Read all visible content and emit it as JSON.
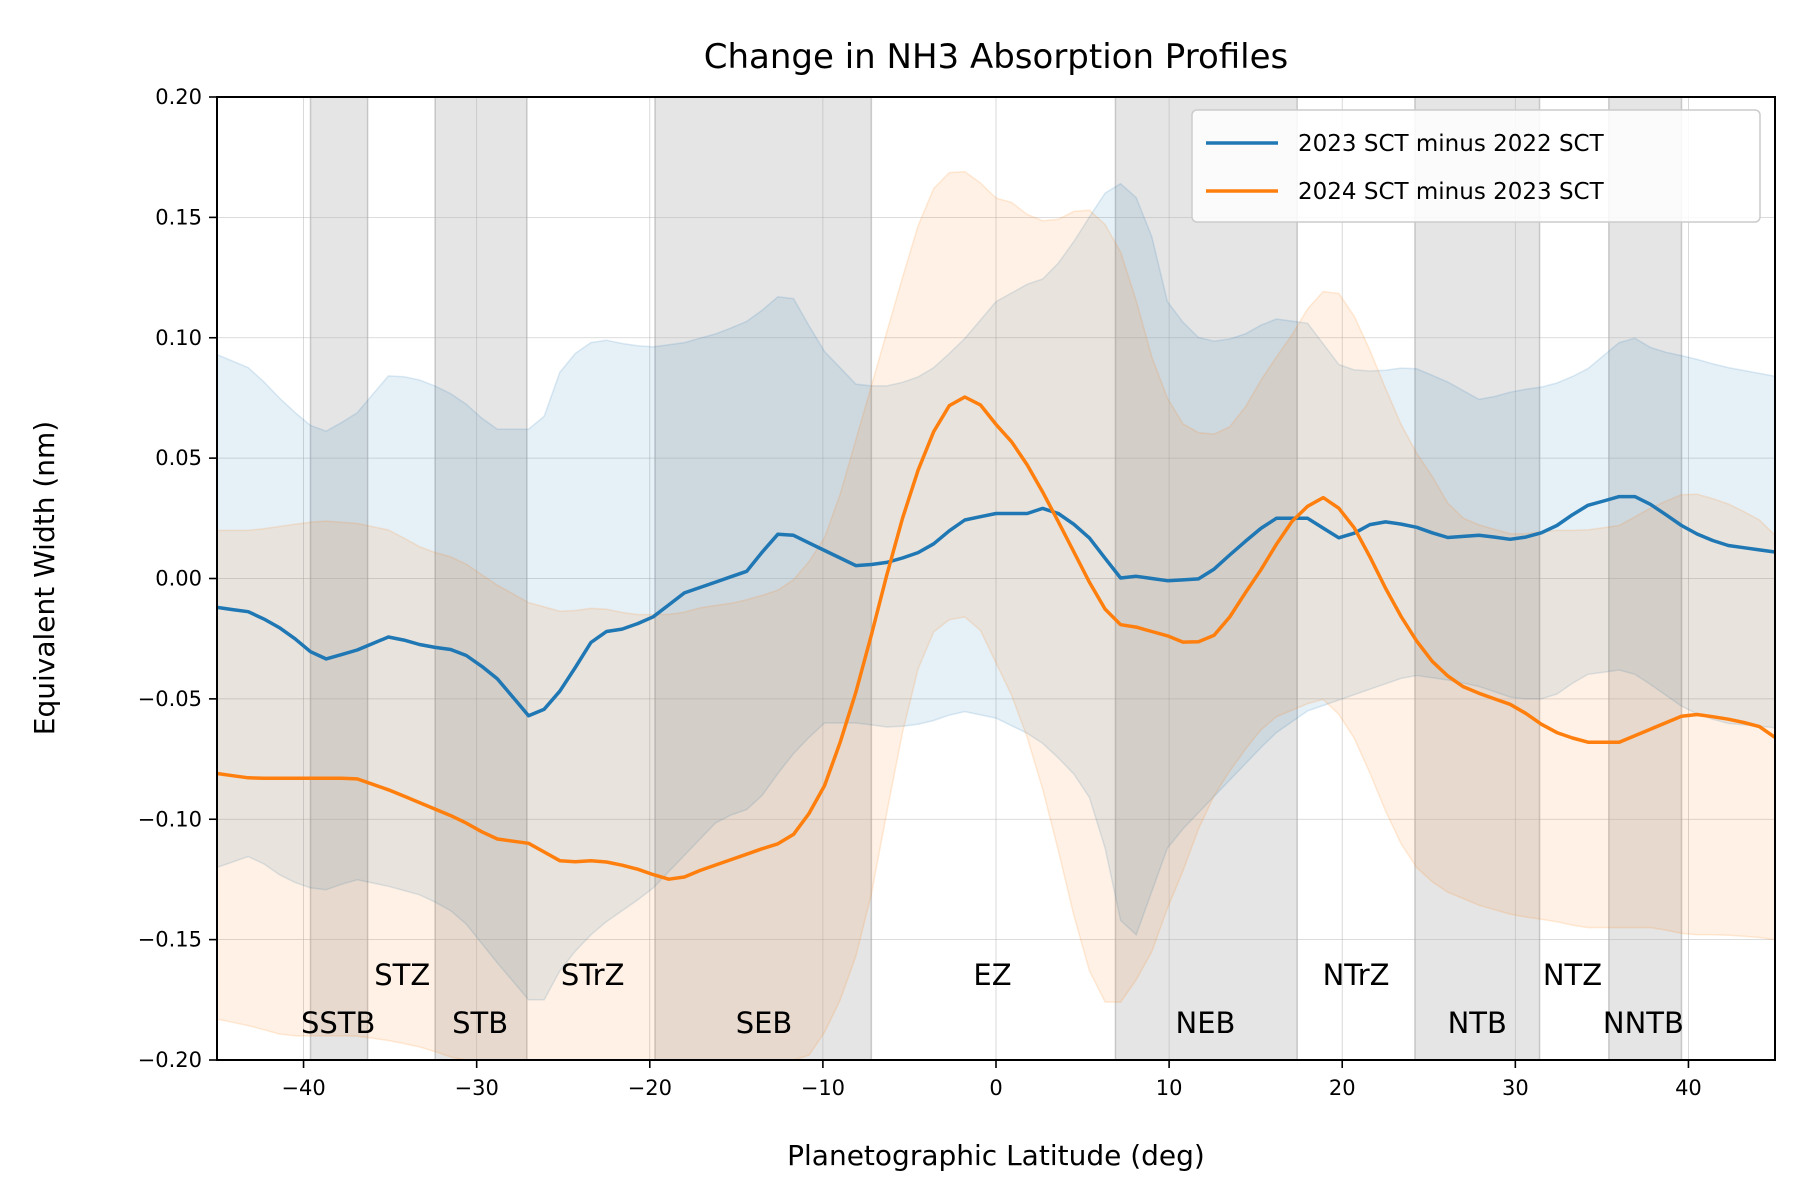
{
  "chart_data": {
    "type": "line",
    "title": "Change in NH3 Absorption Profiles",
    "xlabel": "Planetographic Latitude (deg)",
    "ylabel": "Equivalent Width (nm)",
    "xlim": [
      -45,
      45
    ],
    "ylim": [
      -0.2,
      0.2
    ],
    "xticks": [
      -40,
      -30,
      -20,
      -10,
      0,
      10,
      20,
      30,
      40
    ],
    "xtick_labels": [
      "−40",
      "−30",
      "−20",
      "−10",
      "0",
      "10",
      "20",
      "30",
      "40"
    ],
    "yticks": [
      0.2,
      0.15,
      0.1,
      0.05,
      0.0,
      -0.05,
      -0.1,
      -0.15,
      -0.2
    ],
    "ytick_labels": [
      "0.20",
      "0.15",
      "0.10",
      "0.05",
      "0.00",
      "−0.05",
      "−0.10",
      "−0.15",
      "−0.20"
    ],
    "grid": true,
    "legend_position": "top-right",
    "belts": [
      {
        "name": "SSTB",
        "lat_range": [
          -39.6,
          -36.3
        ]
      },
      {
        "name": "STB",
        "lat_range": [
          -32.4,
          -27.1
        ]
      },
      {
        "name": "SEB",
        "lat_range": [
          -19.7,
          -7.2
        ]
      },
      {
        "name": "NEB",
        "lat_range": [
          6.9,
          17.4
        ]
      },
      {
        "name": "NTB",
        "lat_range": [
          24.2,
          31.4
        ]
      },
      {
        "name": "NNTB",
        "lat_range": [
          35.4,
          39.6
        ]
      }
    ],
    "region_labels": [
      {
        "text": "STZ",
        "lat": -34.3,
        "row": "upper"
      },
      {
        "text": "SSTB",
        "lat": -38.0,
        "row": "lower"
      },
      {
        "text": "STB",
        "lat": -29.8,
        "row": "lower"
      },
      {
        "text": "STrZ",
        "lat": -23.3,
        "row": "upper"
      },
      {
        "text": "SEB",
        "lat": -13.4,
        "row": "lower"
      },
      {
        "text": "EZ",
        "lat": -0.2,
        "row": "upper"
      },
      {
        "text": "NEB",
        "lat": 12.1,
        "row": "lower"
      },
      {
        "text": "NTrZ",
        "lat": 20.8,
        "row": "upper"
      },
      {
        "text": "NTB",
        "lat": 27.8,
        "row": "lower"
      },
      {
        "text": "NTZ",
        "lat": 33.3,
        "row": "upper"
      },
      {
        "text": "NNTB",
        "lat": 37.4,
        "row": "lower"
      }
    ],
    "series": [
      {
        "name": "2023 SCT minus 2022 SCT",
        "color": "#1f77b4",
        "x": [
          -45,
          -43,
          -41,
          -39,
          -37,
          -35,
          -33,
          -31,
          -29,
          -27,
          -26,
          -25,
          -23,
          -22,
          -20,
          -18,
          -16,
          -14,
          -13,
          -12,
          -10,
          -8,
          -6,
          -4,
          -2,
          0,
          2,
          3,
          5,
          6,
          7,
          8,
          9,
          10,
          12,
          14,
          16,
          18,
          20,
          22,
          24,
          26,
          28,
          30,
          32,
          34,
          36,
          37,
          38,
          40,
          42,
          45
        ],
        "y": [
          -0.012,
          -0.014,
          -0.022,
          -0.034,
          -0.03,
          -0.024,
          -0.028,
          -0.03,
          -0.04,
          -0.057,
          -0.054,
          -0.045,
          -0.022,
          -0.022,
          -0.017,
          -0.006,
          -0.001,
          0.004,
          0.018,
          0.019,
          0.012,
          0.005,
          0.007,
          0.012,
          0.024,
          0.027,
          0.027,
          0.03,
          0.02,
          0.012,
          0.0,
          0.001,
          0.0,
          -0.001,
          0.0,
          0.013,
          0.025,
          0.025,
          0.016,
          0.024,
          0.022,
          0.017,
          0.018,
          0.016,
          0.02,
          0.03,
          0.034,
          0.034,
          0.03,
          0.02,
          0.014,
          0.011
        ],
        "upper": [
          0.093,
          0.087,
          0.072,
          0.06,
          0.068,
          0.085,
          0.082,
          0.075,
          0.062,
          0.062,
          0.068,
          0.09,
          0.1,
          0.098,
          0.096,
          0.098,
          0.102,
          0.108,
          0.115,
          0.12,
          0.095,
          0.08,
          0.08,
          0.085,
          0.098,
          0.115,
          0.123,
          0.125,
          0.145,
          0.158,
          0.165,
          0.16,
          0.142,
          0.112,
          0.098,
          0.1,
          0.108,
          0.106,
          0.087,
          0.086,
          0.088,
          0.082,
          0.074,
          0.078,
          0.08,
          0.086,
          0.098,
          0.1,
          0.095,
          0.092,
          0.088,
          0.084
        ],
        "lower": [
          -0.12,
          -0.115,
          -0.125,
          -0.13,
          -0.125,
          -0.128,
          -0.132,
          -0.14,
          -0.158,
          -0.175,
          -0.175,
          -0.16,
          -0.145,
          -0.14,
          -0.13,
          -0.115,
          -0.1,
          -0.095,
          -0.085,
          -0.075,
          -0.06,
          -0.06,
          -0.062,
          -0.06,
          -0.055,
          -0.058,
          -0.065,
          -0.07,
          -0.085,
          -0.1,
          -0.14,
          -0.15,
          -0.13,
          -0.11,
          -0.095,
          -0.08,
          -0.065,
          -0.055,
          -0.05,
          -0.045,
          -0.04,
          -0.042,
          -0.045,
          -0.05,
          -0.05,
          -0.04,
          -0.038,
          -0.04,
          -0.045,
          -0.055,
          -0.06,
          -0.062
        ]
      },
      {
        "name": "2024 SCT minus 2023 SCT",
        "color": "#ff7f0e",
        "x": [
          -45,
          -43,
          -41,
          -39,
          -37,
          -35,
          -33,
          -31,
          -29,
          -27,
          -25,
          -23,
          -21,
          -19,
          -18,
          -17,
          -15,
          -13,
          -12,
          -11,
          -10,
          -9,
          -8,
          -7,
          -6,
          -5,
          -4,
          -3,
          -2,
          -1,
          0,
          1,
          2,
          3,
          4,
          5,
          6,
          7,
          8,
          9,
          10,
          11,
          12,
          13,
          14,
          15,
          16,
          17,
          18,
          19,
          20,
          21,
          22,
          23,
          24,
          25,
          26,
          27,
          28,
          30,
          32,
          34,
          36,
          38,
          40,
          42,
          44,
          45
        ],
        "y": [
          -0.081,
          -0.083,
          -0.083,
          -0.083,
          -0.083,
          -0.088,
          -0.094,
          -0.1,
          -0.108,
          -0.11,
          -0.118,
          -0.117,
          -0.12,
          -0.125,
          -0.124,
          -0.121,
          -0.116,
          -0.111,
          -0.109,
          -0.1,
          -0.088,
          -0.068,
          -0.045,
          -0.018,
          0.01,
          0.035,
          0.055,
          0.07,
          0.076,
          0.073,
          0.064,
          0.056,
          0.045,
          0.032,
          0.018,
          0.004,
          -0.01,
          -0.019,
          -0.02,
          -0.022,
          -0.024,
          -0.027,
          -0.026,
          -0.022,
          -0.01,
          0.0,
          0.012,
          0.023,
          0.03,
          0.034,
          0.028,
          0.018,
          0.003,
          -0.011,
          -0.023,
          -0.033,
          -0.04,
          -0.045,
          -0.048,
          -0.053,
          -0.063,
          -0.068,
          -0.068,
          -0.062,
          -0.056,
          -0.058,
          -0.061,
          -0.066
        ],
        "upper": [
          0.02,
          0.02,
          0.022,
          0.024,
          0.023,
          0.02,
          0.012,
          0.008,
          -0.002,
          -0.01,
          -0.014,
          -0.012,
          -0.015,
          -0.015,
          -0.014,
          -0.012,
          -0.01,
          -0.006,
          -0.003,
          0.005,
          0.015,
          0.035,
          0.06,
          0.085,
          0.11,
          0.135,
          0.158,
          0.168,
          0.17,
          0.165,
          0.158,
          0.156,
          0.15,
          0.148,
          0.15,
          0.155,
          0.15,
          0.14,
          0.118,
          0.092,
          0.073,
          0.062,
          0.06,
          0.06,
          0.066,
          0.079,
          0.09,
          0.1,
          0.112,
          0.12,
          0.118,
          0.105,
          0.088,
          0.07,
          0.055,
          0.045,
          0.032,
          0.025,
          0.022,
          0.018,
          0.02,
          0.02,
          0.022,
          0.03,
          0.036,
          0.032,
          0.025,
          0.018
        ],
        "lower": [
          -0.183,
          -0.186,
          -0.19,
          -0.19,
          -0.19,
          -0.192,
          -0.195,
          -0.2,
          -0.2,
          -0.2,
          -0.2,
          -0.2,
          -0.2,
          -0.2,
          -0.2,
          -0.2,
          -0.2,
          -0.2,
          -0.2,
          -0.2,
          -0.19,
          -0.175,
          -0.155,
          -0.125,
          -0.085,
          -0.05,
          -0.025,
          -0.018,
          -0.015,
          -0.02,
          -0.035,
          -0.05,
          -0.07,
          -0.095,
          -0.125,
          -0.155,
          -0.175,
          -0.178,
          -0.168,
          -0.155,
          -0.135,
          -0.118,
          -0.098,
          -0.085,
          -0.075,
          -0.065,
          -0.058,
          -0.055,
          -0.052,
          -0.05,
          -0.058,
          -0.07,
          -0.088,
          -0.105,
          -0.118,
          -0.125,
          -0.13,
          -0.133,
          -0.136,
          -0.14,
          -0.142,
          -0.145,
          -0.145,
          -0.145,
          -0.148,
          -0.148,
          -0.149,
          -0.15
        ]
      }
    ]
  }
}
